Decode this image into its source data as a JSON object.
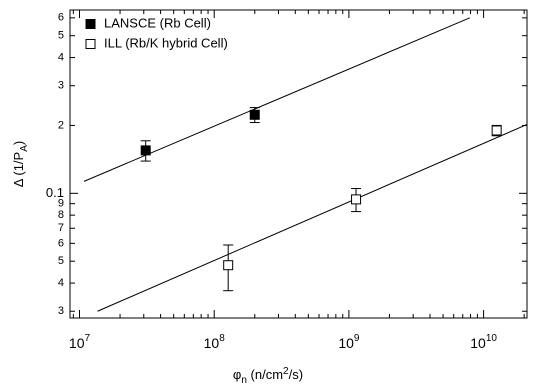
{
  "chart_data": {
    "type": "scatter",
    "xscale": "log",
    "yscale": "log",
    "xlim": [
      8500000,
      21000000000
    ],
    "ylim": [
      0.028,
      0.65
    ],
    "xticks": [
      {
        "value": 10000000,
        "label": "10",
        "sup": "7"
      },
      {
        "value": 100000000,
        "label": "10",
        "sup": "8"
      },
      {
        "value": 1000000000,
        "label": "10",
        "sup": "9"
      },
      {
        "value": 10000000000,
        "label": "10",
        "sup": "10"
      }
    ],
    "yticks": [
      {
        "value": 0.03,
        "label": "3"
      },
      {
        "value": 0.04,
        "label": "4"
      },
      {
        "value": 0.05,
        "label": "5"
      },
      {
        "value": 0.06,
        "label": "6"
      },
      {
        "value": 0.07,
        "label": "7"
      },
      {
        "value": 0.08,
        "label": "8"
      },
      {
        "value": 0.09,
        "label": "9"
      },
      0.1,
      {
        "value": 0.2,
        "label": "2"
      },
      {
        "value": 0.3,
        "label": "3"
      },
      {
        "value": 0.4,
        "label": "4"
      },
      {
        "value": 0.5,
        "label": "5"
      },
      {
        "value": 0.6,
        "label": "6"
      }
    ],
    "x_label": [
      {
        "text": "φ"
      },
      {
        "text": "n",
        "sub": true
      },
      {
        "text": " (n/cm"
      },
      {
        "text": "2",
        "sup": true
      },
      {
        "text": "/s)"
      }
    ],
    "y_label": [
      {
        "text": "Δ (1/P"
      },
      {
        "text": "A",
        "sub": true
      },
      {
        "text": ")"
      }
    ],
    "legend": "upper left",
    "series": [
      {
        "name": "LANSCE (Rb Cell)",
        "marker": "filled",
        "color": "#000000",
        "x": [
          31000000,
          200000000
        ],
        "values": [
          0.155,
          0.223
        ],
        "errors": [
          0.016,
          0.017
        ],
        "fit": {
          "x": [
            10800000,
            7900000000
          ],
          "values": [
            0.113,
            0.6
          ]
        }
      },
      {
        "name": "ILL (Rb/K hybrid Cell)",
        "marker": "open",
        "color": "#000000",
        "x": [
          127000000,
          1130000000,
          12500000000
        ],
        "values": [
          0.048,
          0.094,
          0.19
        ],
        "errors": [
          0.011,
          0.011,
          0.01
        ],
        "fit": {
          "x": [
            13600000,
            21000000000
          ],
          "values": [
            0.03,
            0.202
          ]
        }
      }
    ]
  }
}
